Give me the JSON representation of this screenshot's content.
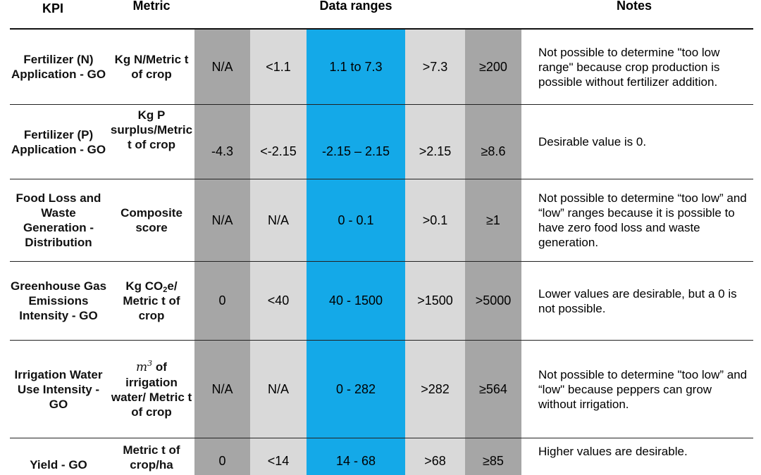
{
  "headers": {
    "kpi": "KPI",
    "metric": "Metric",
    "data_ranges": "Data ranges",
    "notes": "Notes"
  },
  "rows": [
    {
      "kpi": "Fertilizer (N) Application - GO",
      "metric": "Kg N/Metric t of crop",
      "ranges": [
        "N/A",
        "<1.1",
        "1.1 to 7.3",
        ">7.3",
        "≥200"
      ],
      "note": "Not possible to determine \"too low range\" because crop production is possible without fertilizer addition."
    },
    {
      "kpi": "Fertilizer (P) Application - GO",
      "metric": "Kg P surplus/Metric t of crop",
      "ranges": [
        "-4.3",
        "<-2.15",
        "-2.15 – 2.15",
        ">2.15",
        "≥8.6"
      ],
      "note": "Desirable value is 0."
    },
    {
      "kpi": "Food Loss and Waste Generation - Distribution",
      "metric": "Composite score",
      "ranges": [
        "N/A",
        "N/A",
        "0 - 0.1",
        ">0.1",
        "≥1"
      ],
      "note": "Not possible to determine “too low” and “low” ranges because it is possible to have zero food loss and waste generation."
    },
    {
      "kpi": "Greenhouse Gas Emissions Intensity - GO",
      "metric_prefix": "Kg CO",
      "metric_sub": "2",
      "metric_suffix": "e/ Metric t of crop",
      "ranges": [
        "0",
        "<40",
        "40 - 1500",
        ">1500",
        ">5000"
      ],
      "note": "Lower values are desirable, but a 0 is not possible."
    },
    {
      "kpi": "Irrigation Water Use Intensity - GO",
      "metric_symbol": "m",
      "metric_sup": "3",
      "metric_rest": " of irrigation water/ Metric t of crop",
      "ranges": [
        "N/A",
        "N/A",
        "0 - 282",
        ">282",
        "≥564"
      ],
      "note": "Not possible to determine \"too low” and “low\" because peppers can grow without irrigation."
    },
    {
      "kpi": "Yield - GO",
      "metric": "Metric t of crop/ha",
      "ranges": [
        "0",
        "<14",
        "14 - 68",
        ">68",
        "≥85"
      ],
      "note": "Higher values are desirable."
    }
  ],
  "colors": {
    "dark_band": "#a6a6a6",
    "light_band": "#d9d9d9",
    "desirable_band": "#14a9e8"
  }
}
